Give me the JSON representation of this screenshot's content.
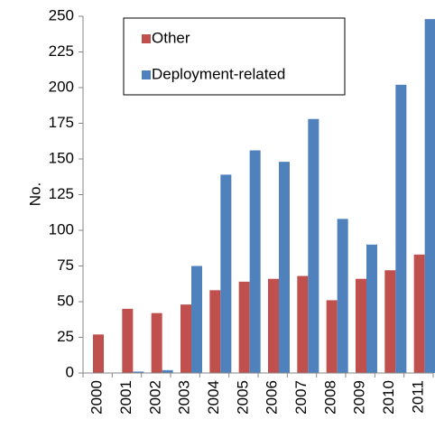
{
  "chart_data": {
    "type": "bar",
    "y_label": "No.",
    "categories": [
      "2000",
      "2001",
      "2002",
      "2003",
      "2004",
      "2005",
      "2006",
      "2007",
      "2008",
      "2009",
      "2010",
      "2011"
    ],
    "series": [
      {
        "name": "Other",
        "color": "#c0504d",
        "values": [
          27,
          45,
          42,
          48,
          58,
          64,
          66,
          68,
          51,
          66,
          72,
          83
        ]
      },
      {
        "name": "Deployment-related",
        "color": "#4f81bd",
        "values": [
          0,
          1,
          2,
          75,
          139,
          156,
          148,
          178,
          108,
          90,
          202,
          248
        ]
      }
    ],
    "ylim": [
      0,
      250
    ],
    "yticks": [
      0,
      25,
      50,
      75,
      100,
      125,
      150,
      175,
      200,
      225,
      250
    ],
    "grid": false,
    "legend": "upper-left"
  }
}
